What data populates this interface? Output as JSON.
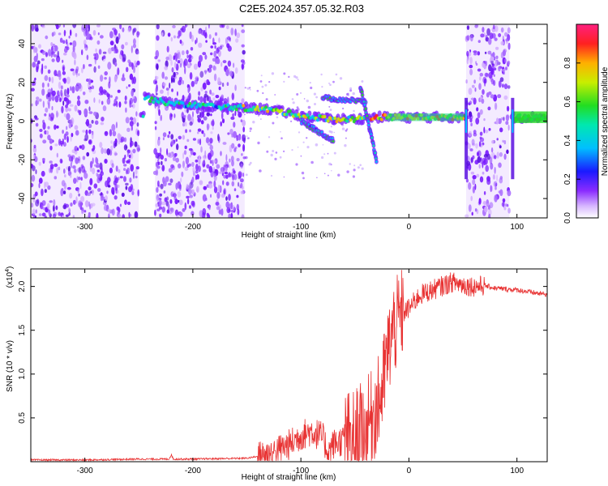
{
  "figure_title": "C2E5.2024.357.05.32.R03",
  "colors": {
    "snr_line": "#e83232",
    "purple_scatter": "#7a1cff",
    "light_purple": "#d8b8ff",
    "axis": "#000000",
    "background": "#ffffff"
  },
  "chart_data": [
    {
      "type": "heatmap",
      "title": "",
      "xlabel": "Height of straight line (km)",
      "ylabel": "Frequency (Hz)",
      "xlim": [
        -350,
        128
      ],
      "ylim": [
        -50,
        50
      ],
      "xticks": [
        -300,
        -200,
        -100,
        0,
        100
      ],
      "yticks": [
        -40,
        -20,
        0,
        20,
        40
      ],
      "colorbar": {
        "label": "Normalized spectral amplitude",
        "range": [
          0,
          1
        ],
        "ticks": [
          "0.0",
          "0.2",
          "0.4",
          "0.6",
          "0.8"
        ],
        "colormap": "rainbow (white/purple low, red/magenta high)"
      },
      "regions": [
        {
          "name": "noise",
          "x_range": [
            -350,
            -250
          ],
          "freq_range": [
            -50,
            50
          ],
          "amplitude": 0.1
        },
        {
          "name": "noise",
          "x_range": [
            -235,
            -152
          ],
          "freq_range": [
            -50,
            50
          ],
          "amplitude": 0.1
        },
        {
          "name": "noise",
          "x_range": [
            53,
            93
          ],
          "freq_range": [
            -50,
            50
          ],
          "amplitude": 0.1
        }
      ],
      "signal_track": [
        {
          "x": -245,
          "freq": 12
        },
        {
          "x": -220,
          "freq": 9
        },
        {
          "x": -190,
          "freq": 8
        },
        {
          "x": -160,
          "freq": 7
        },
        {
          "x": -130,
          "freq": 6
        },
        {
          "x": -110,
          "freq": 4
        },
        {
          "x": -90,
          "freq": 2
        },
        {
          "x": -70,
          "freq": 1
        },
        {
          "x": -50,
          "freq": 1
        },
        {
          "x": -30,
          "freq": 2
        },
        {
          "x": 0,
          "freq": 2
        },
        {
          "x": 30,
          "freq": 2
        },
        {
          "x": 50,
          "freq": 2
        },
        {
          "x": 100,
          "freq": 2
        },
        {
          "x": 128,
          "freq": 2
        }
      ],
      "secondary_tracks": [
        {
          "from": {
            "x": -100,
            "freq": 0
          },
          "to": {
            "x": -70,
            "freq": -10
          }
        },
        {
          "from": {
            "x": -80,
            "freq": 12
          },
          "to": {
            "x": -40,
            "freq": 10
          }
        },
        {
          "from": {
            "x": -45,
            "freq": 18
          },
          "to": {
            "x": -30,
            "freq": -20
          }
        }
      ]
    },
    {
      "type": "line",
      "title": "",
      "xlabel": "Height of straight line (km)",
      "ylabel": "SNR (10 * v/v)",
      "scale_note": "(x10",
      "scale_exp": "4",
      "scale_close": ")",
      "xlim": [
        -350,
        128
      ],
      "ylim": [
        0,
        2.2
      ],
      "xticks": [
        -300,
        -200,
        -100,
        0,
        100
      ],
      "yticks": [
        "0.5",
        "1.0",
        "1.5",
        "2.0"
      ],
      "series": [
        {
          "x": [
            -350,
            -300,
            -250,
            -222,
            -220,
            -218,
            -200,
            -150,
            -130,
            -110,
            -100,
            -90,
            -80,
            -75,
            -70,
            -60,
            -50,
            -40,
            -30,
            -25,
            -20,
            -15,
            -10,
            -5,
            0,
            10,
            20,
            30,
            40,
            50,
            60,
            70,
            80,
            90,
            100,
            110,
            120,
            128
          ],
          "y": [
            0.02,
            0.02,
            0.03,
            0.03,
            0.08,
            0.03,
            0.03,
            0.04,
            0.08,
            0.2,
            0.3,
            0.35,
            0.28,
            0.12,
            0.2,
            0.25,
            0.3,
            0.4,
            0.6,
            0.8,
            1.2,
            1.5,
            1.6,
            1.7,
            1.75,
            1.9,
            1.95,
            2.0,
            2.05,
            2.02,
            2.0,
            2.01,
            1.98,
            1.97,
            1.96,
            1.94,
            1.92,
            1.91
          ]
        }
      ]
    }
  ]
}
